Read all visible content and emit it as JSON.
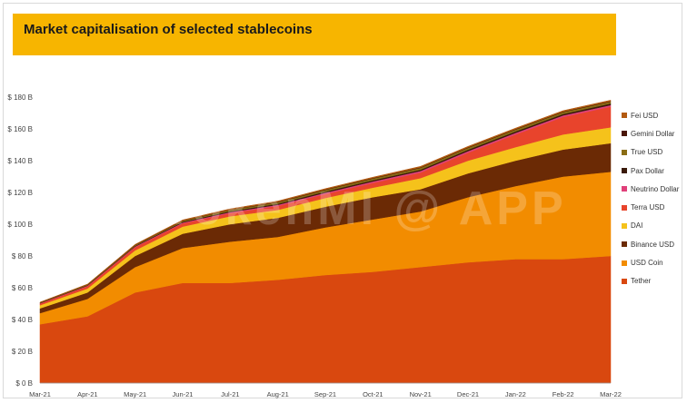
{
  "title": "Market capitalisation of selected stablecoins",
  "watermark": "TokenMI @ APP",
  "chart_data": {
    "type": "area",
    "stacked": true,
    "x": [
      "Mar-21",
      "Apr-21",
      "May-21",
      "Jun-21",
      "Jul-21",
      "Aug-21",
      "Sep-21",
      "Oct-21",
      "Nov-21",
      "Dec-21",
      "Jan-22",
      "Feb-22",
      "Mar-22"
    ],
    "x_tick_labels": [
      "Mar-21",
      "Apr-21",
      "May-21",
      "Jun-21",
      "Jul-21",
      "Aug-21",
      "Sep-21",
      "Oct-21",
      "Nov-21",
      "Dec-21",
      "Jan-22",
      "Feb-22",
      "Mar-22"
    ],
    "y_ticks": [
      0,
      20,
      40,
      60,
      80,
      100,
      120,
      140,
      160,
      180
    ],
    "y_tick_labels": [
      "$ 0 B",
      "$ 20 B",
      "$ 40 B",
      "$ 60 B",
      "$ 80 B",
      "$ 100 B",
      "$ 120 B",
      "$ 140 B",
      "$ 160 B",
      "$ 180 B"
    ],
    "ylim": [
      0,
      180
    ],
    "grid": false,
    "legend_position": "right",
    "series": [
      {
        "name": "Tether",
        "color": "#d9480f",
        "values": [
          37,
          42,
          57,
          63,
          63,
          65,
          68,
          70,
          73,
          76,
          78,
          78,
          80
        ]
      },
      {
        "name": "USD Coin",
        "color": "#f28c00",
        "values": [
          7,
          11,
          16,
          22,
          26,
          27,
          30,
          33,
          35,
          41,
          46,
          52,
          53
        ]
      },
      {
        "name": "Binance USD",
        "color": "#6b2a05",
        "values": [
          3,
          4,
          7,
          9,
          11,
          12,
          13,
          14,
          14,
          15,
          16,
          17,
          18
        ]
      },
      {
        "name": "DAI",
        "color": "#f5c21b",
        "values": [
          2,
          2.5,
          3.5,
          4.5,
          5,
          5,
          5.5,
          6,
          7,
          8,
          8.5,
          9.5,
          10
        ]
      },
      {
        "name": "Terra USD",
        "color": "#e8442c",
        "values": [
          1,
          1.5,
          2,
          2,
          2,
          2.5,
          2.5,
          3,
          3.5,
          5,
          8,
          11,
          13
        ]
      },
      {
        "name": "Neutrino Dollar",
        "color": "#e0407a",
        "values": [
          0.2,
          0.3,
          0.4,
          0.5,
          0.6,
          0.7,
          0.8,
          0.9,
          1,
          1,
          1,
          1,
          1
        ]
      },
      {
        "name": "Pax Dollar",
        "color": "#3a1a0a",
        "values": [
          0.2,
          0.3,
          0.4,
          0.5,
          0.6,
          0.7,
          0.8,
          0.8,
          0.8,
          0.9,
          0.9,
          0.9,
          1
        ]
      },
      {
        "name": "True USD",
        "color": "#8a6d14",
        "values": [
          0.3,
          0.4,
          0.5,
          0.6,
          0.8,
          0.9,
          1,
          1.1,
          1.2,
          1.2,
          1.2,
          1.2,
          1.2
        ]
      },
      {
        "name": "Gemini Dollar",
        "color": "#4a1608",
        "values": [
          0.1,
          0.1,
          0.2,
          0.2,
          0.2,
          0.3,
          0.3,
          0.3,
          0.3,
          0.3,
          0.3,
          0.3,
          0.3
        ]
      },
      {
        "name": "Fei USD",
        "color": "#b35a10",
        "values": [
          0.1,
          0.2,
          0.3,
          0.4,
          0.5,
          0.5,
          0.5,
          0.5,
          0.6,
          0.6,
          0.6,
          0.6,
          0.6
        ]
      }
    ]
  }
}
